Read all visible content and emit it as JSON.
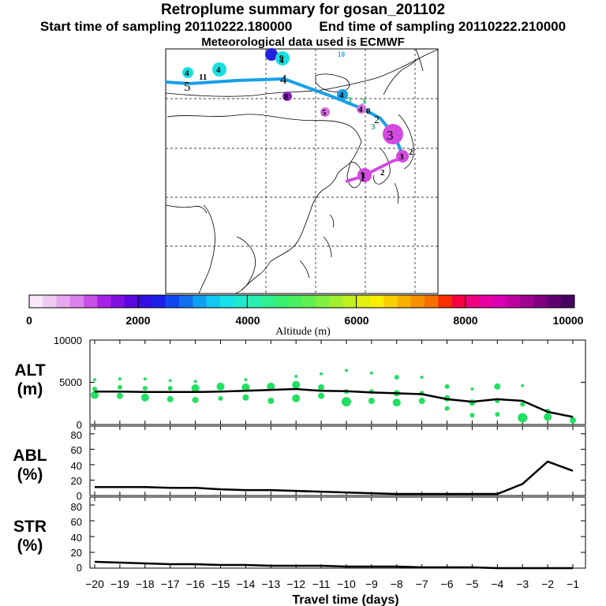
{
  "header": {
    "title": "Retroplume summary for gosan_201102",
    "start_label": "Start time of sampling 20110222.180000",
    "end_label": "End time of sampling 20110222.210000",
    "met_label": "Meteorological data used is ECMWF"
  },
  "colors": {
    "trajectory_main": "#1aa0e8",
    "trajectory_recent": "#d24be0",
    "point_green": "#22e060",
    "line": "#000000"
  },
  "map": {
    "centroid_labels": [
      {
        "day": "5"
      },
      {
        "day": "4"
      },
      {
        "day": "3"
      },
      {
        "day": "2"
      },
      {
        "day": "1"
      }
    ],
    "cluster_labels": [
      {
        "text": "4",
        "color": "#18e0e0"
      },
      {
        "text": "11",
        "color": "#18e0e0"
      },
      {
        "text": "4",
        "color": "#18e0e0"
      },
      {
        "text": "9",
        "color": "#2222dd"
      },
      {
        "text": "4",
        "color": "#18e0e0"
      },
      {
        "text": "10",
        "color": "#18e0e0"
      },
      {
        "text": "8",
        "color": "#8822bb"
      },
      {
        "text": "4",
        "color": "#1aa0e8"
      },
      {
        "text": "3",
        "color": "#30e890"
      },
      {
        "text": "3",
        "color": "#30e890"
      },
      {
        "text": "4",
        "color": "#d24be0"
      },
      {
        "text": "8",
        "color": "#c050d8"
      },
      {
        "text": "5",
        "color": "#c050d8"
      },
      {
        "text": "3",
        "color": "#18e0e0"
      },
      {
        "text": "3",
        "color": "#d050d8"
      },
      {
        "text": "2",
        "color": "#d050d8"
      },
      {
        "text": "1",
        "color": "#d24be0"
      },
      {
        "text": "2",
        "color": "#d24be0"
      }
    ]
  },
  "colorbar": {
    "tick_labels": [
      "0",
      "2000",
      "4000",
      "6000",
      "8000",
      "10000"
    ],
    "ticks": [
      0,
      2000,
      4000,
      6000,
      8000,
      10000
    ],
    "label": "Altitude (m)",
    "colors": [
      "#f8e8fa",
      "#f0ccf4",
      "#e8a8f0",
      "#dc80ec",
      "#c850e8",
      "#a820e8",
      "#8010e0",
      "#5a08e0",
      "#3410e0",
      "#1a20e8",
      "#1048f0",
      "#1070f0",
      "#10a0f0",
      "#10c8f0",
      "#18e0e8",
      "#20e8d0",
      "#28f0b0",
      "#30f090",
      "#38f070",
      "#48f060",
      "#60f050",
      "#80f040",
      "#a0f030",
      "#c0f020",
      "#e0f010",
      "#f8f000",
      "#f8d000",
      "#f8b000",
      "#f89000",
      "#f87000",
      "#f83000",
      "#f80040",
      "#f00080",
      "#e800a0",
      "#d800b0",
      "#c000a0",
      "#a00090",
      "#800080",
      "#600070",
      "#480060"
    ]
  },
  "chart_data": [
    {
      "type": "line",
      "panel": "altitude",
      "ylabel_line1": "ALT",
      "ylabel_line2": "(m)",
      "ylim": [
        0,
        10000
      ],
      "yticks": [
        0,
        5000,
        10000
      ],
      "ytick_labels": [
        "0",
        "5000",
        "10000"
      ],
      "x": [
        -20,
        -19,
        -18,
        -17,
        -16,
        -15,
        -14,
        -13,
        -12,
        -11,
        -10,
        -9,
        -8,
        -7,
        -6,
        -5,
        -4,
        -3,
        -2,
        -1
      ],
      "series": [
        {
          "name": "mean altitude",
          "values": [
            3900,
            3900,
            3850,
            3850,
            3850,
            3900,
            4000,
            4100,
            4200,
            4000,
            3950,
            3800,
            3700,
            3600,
            3000,
            2700,
            3000,
            2800,
            1500,
            900
          ]
        }
      ],
      "clusters": [
        {
          "x": -20,
          "points": [
            [
              3500,
              5
            ],
            [
              4200,
              3
            ],
            [
              5300,
              2
            ]
          ]
        },
        {
          "x": -19,
          "points": [
            [
              3400,
              4
            ],
            [
              4400,
              3
            ],
            [
              5400,
              2
            ]
          ]
        },
        {
          "x": -18,
          "points": [
            [
              3200,
              5
            ],
            [
              4300,
              3
            ],
            [
              5400,
              2
            ]
          ]
        },
        {
          "x": -17,
          "points": [
            [
              3000,
              4
            ],
            [
              4300,
              3
            ],
            [
              5200,
              2
            ]
          ]
        },
        {
          "x": -16,
          "points": [
            [
              2900,
              4
            ],
            [
              4300,
              5
            ],
            [
              5100,
              2
            ]
          ]
        },
        {
          "x": -15,
          "points": [
            [
              3100,
              3
            ],
            [
              4500,
              5
            ]
          ]
        },
        {
          "x": -14,
          "points": [
            [
              3200,
              4
            ],
            [
              4400,
              5
            ],
            [
              5300,
              2
            ]
          ]
        },
        {
          "x": -13,
          "points": [
            [
              2800,
              4
            ],
            [
              4500,
              5
            ]
          ]
        },
        {
          "x": -12,
          "points": [
            [
              3100,
              5
            ],
            [
              4700,
              5
            ],
            [
              5700,
              2
            ]
          ]
        },
        {
          "x": -11,
          "points": [
            [
              3400,
              4
            ],
            [
              4400,
              4
            ],
            [
              6000,
              2
            ]
          ]
        },
        {
          "x": -10,
          "points": [
            [
              2700,
              6
            ],
            [
              3900,
              3
            ],
            [
              6400,
              2
            ]
          ]
        },
        {
          "x": -9,
          "points": [
            [
              2800,
              4
            ],
            [
              3900,
              3
            ],
            [
              6100,
              2
            ]
          ]
        },
        {
          "x": -8,
          "points": [
            [
              2600,
              5
            ],
            [
              3700,
              4
            ],
            [
              5600,
              3
            ]
          ]
        },
        {
          "x": -7,
          "points": [
            [
              2800,
              4
            ],
            [
              3700,
              3
            ],
            [
              5600,
              2
            ]
          ]
        },
        {
          "x": -6,
          "points": [
            [
              1900,
              3
            ],
            [
              3100,
              4
            ],
            [
              4500,
              3
            ]
          ]
        },
        {
          "x": -5,
          "points": [
            [
              1100,
              3
            ],
            [
              2600,
              4
            ],
            [
              4200,
              2
            ]
          ]
        },
        {
          "x": -4,
          "points": [
            [
              1200,
              3
            ],
            [
              2800,
              3
            ],
            [
              4500,
              4
            ]
          ]
        },
        {
          "x": -3,
          "points": [
            [
              800,
              6
            ],
            [
              2400,
              3
            ],
            [
              4600,
              2
            ]
          ]
        },
        {
          "x": -2,
          "points": [
            [
              900,
              5
            ],
            [
              1600,
              3
            ]
          ]
        },
        {
          "x": -1,
          "points": [
            [
              500,
              4
            ]
          ]
        }
      ]
    },
    {
      "type": "line",
      "panel": "abl",
      "ylabel_line1": "ABL",
      "ylabel_line2": "(%)",
      "ylim": [
        0,
        90
      ],
      "yticks": [
        0,
        20,
        40,
        60,
        80
      ],
      "ytick_labels": [
        "0",
        "20",
        "40",
        "60",
        "80"
      ],
      "x": [
        -20,
        -19,
        -18,
        -17,
        -16,
        -15,
        -14,
        -13,
        -12,
        -11,
        -10,
        -9,
        -8,
        -7,
        -6,
        -5,
        -4,
        -3,
        -2,
        -1
      ],
      "series": [
        {
          "name": "ABL fraction",
          "values": [
            11,
            11,
            11,
            10,
            10,
            8,
            7,
            7,
            6,
            5,
            4,
            3,
            2,
            2,
            2,
            2,
            2,
            15,
            44,
            32
          ]
        }
      ]
    },
    {
      "type": "line",
      "panel": "str",
      "ylabel_line1": "STR",
      "ylabel_line2": "(%)",
      "ylim": [
        0,
        90
      ],
      "yticks": [
        0,
        20,
        40,
        60,
        80
      ],
      "ytick_labels": [
        "0",
        "20",
        "40",
        "60",
        "80"
      ],
      "xlabel": "Travel time (days)",
      "xtick_labels": [
        "−20",
        "−19",
        "−18",
        "−17",
        "−16",
        "−15",
        "−14",
        "−13",
        "−12",
        "−11",
        "−10",
        "−9",
        "−8",
        "−7",
        "−6",
        "−5",
        "−4",
        "−3",
        "−2",
        "−1"
      ],
      "x": [
        -20,
        -19,
        -18,
        -17,
        -16,
        -15,
        -14,
        -13,
        -12,
        -11,
        -10,
        -9,
        -8,
        -7,
        -6,
        -5,
        -4,
        -3,
        -2,
        -1
      ],
      "series": [
        {
          "name": "stratospheric fraction",
          "values": [
            8,
            7,
            6,
            5,
            5,
            4,
            4,
            3,
            3,
            3,
            2,
            2,
            2,
            1,
            1,
            1,
            0,
            0,
            0,
            0
          ]
        }
      ]
    }
  ]
}
